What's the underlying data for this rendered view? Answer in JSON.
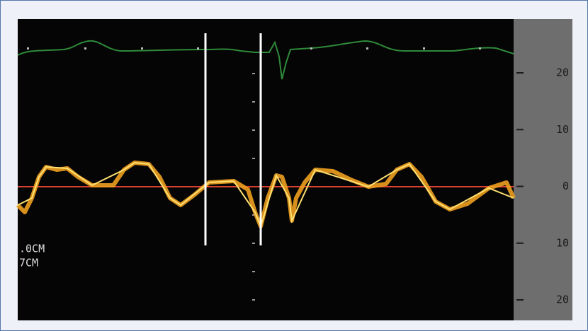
{
  "scale": {
    "labels": [
      "20",
      "10",
      "0",
      "10",
      "20"
    ]
  },
  "overlay": {
    "lines": [
      ".0CM",
      "7CM"
    ]
  }
}
